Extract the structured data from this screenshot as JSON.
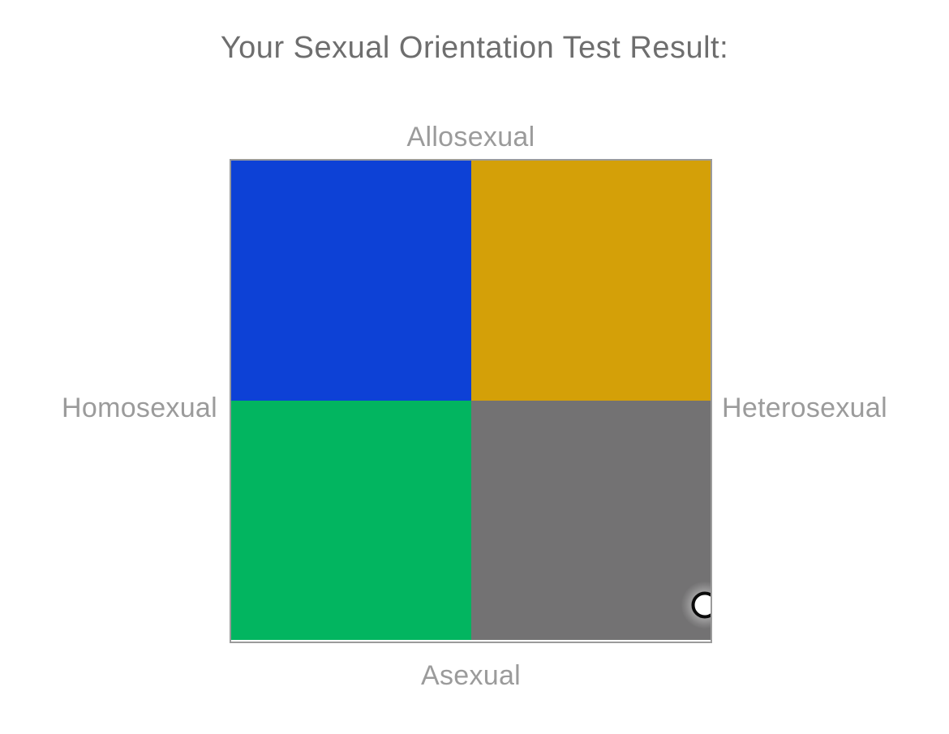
{
  "title": "Your Sexual Orientation Test Result:",
  "chart_data": {
    "type": "quadrant",
    "axis_labels": {
      "top": "Allosexual",
      "bottom": "Asexual",
      "left": "Homosexual",
      "right": "Heterosexual"
    },
    "quadrant_colors": {
      "top_left": "#0d41d6",
      "top_right": "#d4a008",
      "bottom_left": "#02b560",
      "bottom_right": "#737273"
    },
    "marker": {
      "x_fraction": 0.988,
      "y_fraction": 0.924,
      "fill": "#ffffff",
      "stroke": "#0b0b0b",
      "quadrant": "bottom_right"
    },
    "layout": {
      "grid_border_color": "#9b9b9b",
      "title_color": "#6e6e6e",
      "axis_label_color": "#9b9b9b",
      "legend": "none",
      "gridlines": "off"
    }
  }
}
